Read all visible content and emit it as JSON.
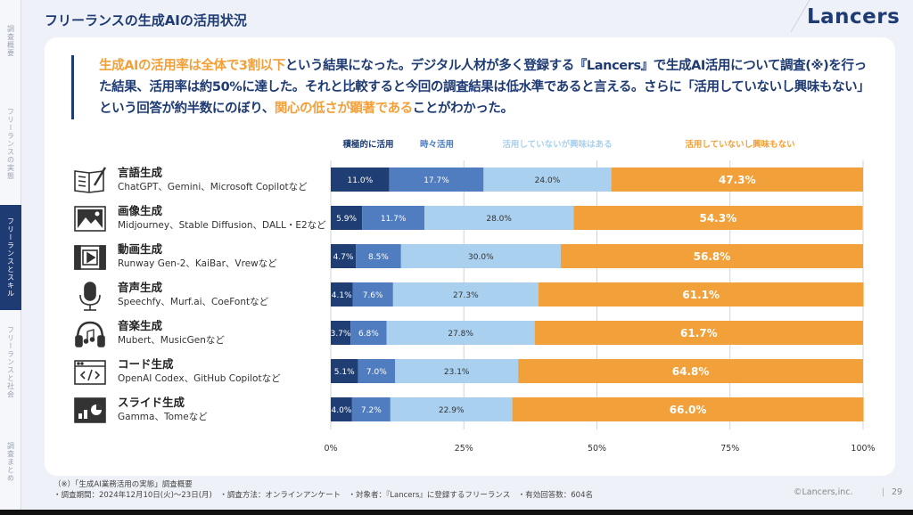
{
  "page": {
    "title": "フリーランスの生成AIの活用状況",
    "logo": "Lancers",
    "copyright": "©Lancers,inc.",
    "page_sep": "|",
    "page_number": "29"
  },
  "side_nav": [
    {
      "label": "調査概要",
      "active": false
    },
    {
      "label": "フリーランスの実態",
      "active": false
    },
    {
      "label": "フリーランスとスキル",
      "active": true
    },
    {
      "label": "フリーランスと社会",
      "active": false
    },
    {
      "label": "調査まとめ",
      "active": false
    }
  ],
  "summary": {
    "p1_hl": "生成AIの活用率は全体で3割以下",
    "p1_rest": "という結果になった。デジタル人材が多く登録する『Lancers』で生成AI活用について調査(※)を行った結果、活用率は約50%に達した。それと比較すると今回の調査結果は低水準であると言える。さらに「活用していないし興味もない」という回答が約半数にのぼり、",
    "p1_hl2": "関心の低さが顕著である",
    "p1_end": "ことがわかった。"
  },
  "footnote": {
    "line1": "（※）「生成AI業務活用の実態」調査概要",
    "line2": "・調査期間：2024年12月10日(火)〜23日(月)　・調査方法：オンラインアンケート　・対象者：『Lancers』に登録するフリーランス　・有効回答数：604名"
  },
  "chart_data": {
    "type": "bar",
    "orientation": "horizontal",
    "stacked": true,
    "title": "",
    "xlabel": "",
    "ylabel": "",
    "xlim": [
      0,
      100
    ],
    "x_ticks": [
      "0%",
      "25%",
      "50%",
      "75%",
      "100%"
    ],
    "legend_position": "top",
    "categories": [
      {
        "name": "言語生成",
        "desc": "ChatGPT、Gemini、Microsoft Copilotなど",
        "icon": "book-icon"
      },
      {
        "name": "画像生成",
        "desc": "Midjourney、Stable Diffusion、DALL・E2など",
        "icon": "image-icon"
      },
      {
        "name": "動画生成",
        "desc": "Runway Gen-2、KaiBar、Vrewなど",
        "icon": "video-icon"
      },
      {
        "name": "音声生成",
        "desc": "Speechfy、Murf.ai、CoeFontなど",
        "icon": "microphone-icon"
      },
      {
        "name": "音楽生成",
        "desc": "Mubert、MusicGenなど",
        "icon": "headphones-icon"
      },
      {
        "name": "コード生成",
        "desc": "OpenAI Codex、GitHub Copilotなど",
        "icon": "code-icon"
      },
      {
        "name": "スライド生成",
        "desc": "Gamma、Tomeなど",
        "icon": "presentation-icon"
      }
    ],
    "series": [
      {
        "name": "積極的に活用",
        "color": "#1f3e74",
        "label_color": "#ffffff",
        "values": [
          11.0,
          5.9,
          4.7,
          4.1,
          3.7,
          5.1,
          4.0
        ]
      },
      {
        "name": "時々活用",
        "color": "#4f7dbf",
        "label_color": "#ffffff",
        "values": [
          17.7,
          11.7,
          8.5,
          7.6,
          6.8,
          7.0,
          7.2
        ]
      },
      {
        "name": "活用していないが興味はある",
        "color": "#a9d0ee",
        "label_color": "#333333",
        "values": [
          24.0,
          28.0,
          30.0,
          27.3,
          27.8,
          23.1,
          22.9
        ]
      },
      {
        "name": "活用していないし興味もない",
        "color": "#f2a03a",
        "label_color": "#ffffff",
        "values": [
          47.3,
          54.3,
          56.8,
          61.1,
          61.7,
          64.8,
          66.0
        ]
      }
    ],
    "legend_colors": [
      "#1f3e74",
      "#4f7dbf",
      "#a9d0ee",
      "#f2a03a"
    ]
  }
}
